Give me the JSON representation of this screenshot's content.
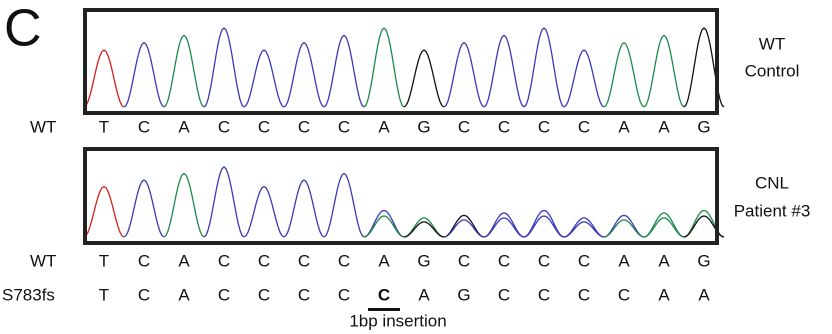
{
  "panel_label": "C",
  "traces": [
    {
      "label_lines": [
        "WT",
        "Control"
      ],
      "rows": [
        {
          "label": "WT",
          "bases": [
            "T",
            "C",
            "A",
            "C",
            "C",
            "C",
            "C",
            "A",
            "G",
            "C",
            "C",
            "C",
            "C",
            "A",
            "A",
            "G"
          ]
        }
      ]
    },
    {
      "label_lines": [
        "CNL",
        "Patient #3"
      ],
      "rows": [
        {
          "label": "WT",
          "bases": [
            "T",
            "C",
            "A",
            "C",
            "C",
            "C",
            "C",
            "A",
            "G",
            "C",
            "C",
            "C",
            "C",
            "A",
            "A",
            "G"
          ]
        },
        {
          "label": "S783fs",
          "bases": [
            "T",
            "C",
            "A",
            "C",
            "C",
            "C",
            "C",
            "C",
            "A",
            "G",
            "C",
            "C",
            "C",
            "C",
            "A",
            "A"
          ],
          "highlight_index": 7
        }
      ]
    }
  ],
  "annotation": "1bp insertion"
}
